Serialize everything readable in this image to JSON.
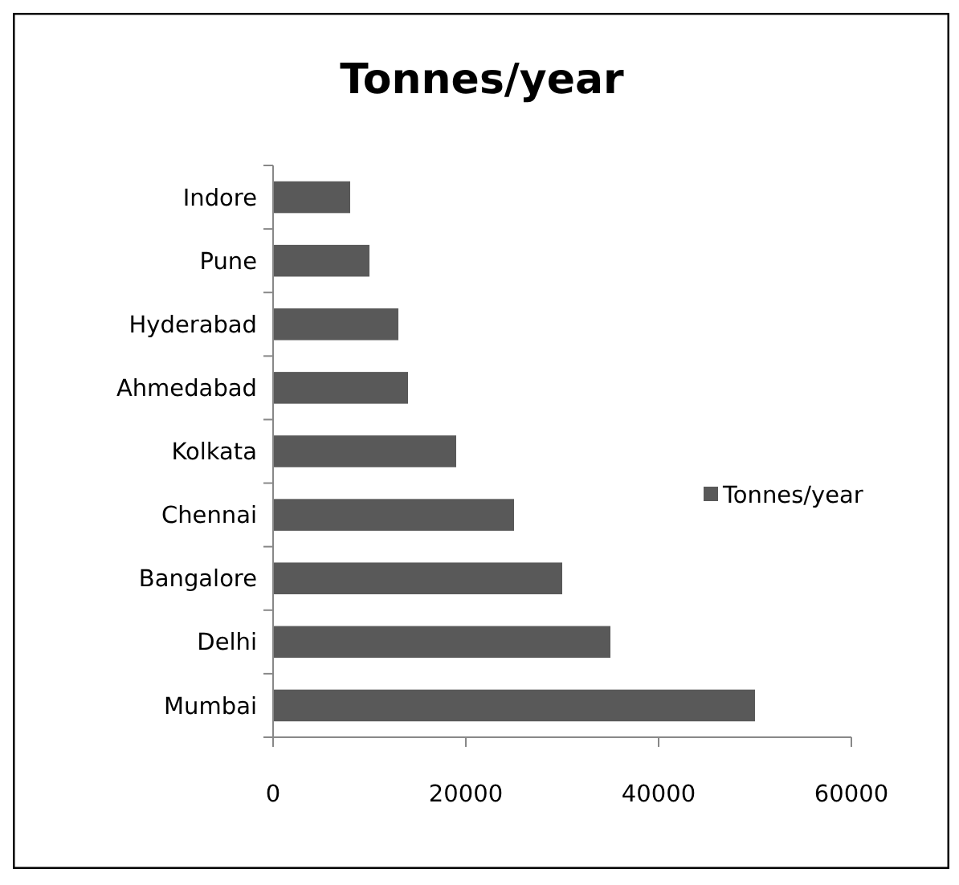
{
  "chart_data": {
    "type": "bar",
    "orientation": "horizontal",
    "title": "Tonnes/year",
    "categories": [
      "Indore",
      "Pune",
      "Hyderabad",
      "Ahmedabad",
      "Kolkata",
      "Chennai",
      "Bangalore",
      "Delhi",
      "Mumbai"
    ],
    "series": [
      {
        "name": "Tonnes/year",
        "color": "#595959",
        "values": [
          8000,
          10000,
          13000,
          14000,
          19000,
          25000,
          30000,
          35000,
          50000
        ]
      }
    ],
    "xlim": [
      0,
      60000
    ],
    "xticks": [
      0,
      20000,
      40000,
      60000
    ],
    "legend": "right",
    "grid": false
  }
}
